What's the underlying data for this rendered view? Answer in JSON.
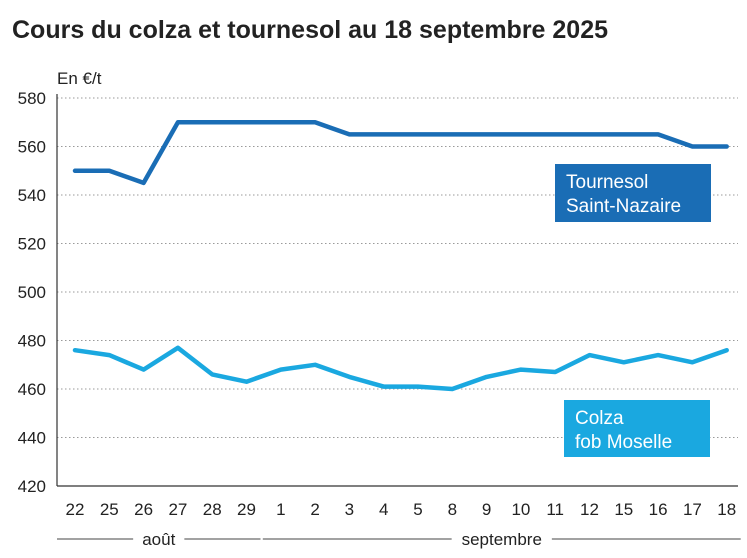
{
  "title": "Cours du colza et tournesol au 18 septembre 2025",
  "chart_data": {
    "type": "line",
    "title": "Cours du colza et tournesol au 18 septembre 2025",
    "ylabel": "En €/t",
    "ylim": [
      420,
      580
    ],
    "yticks": [
      420,
      440,
      460,
      480,
      500,
      520,
      540,
      560,
      580
    ],
    "categories": [
      "22",
      "25",
      "26",
      "27",
      "28",
      "29",
      "1",
      "2",
      "3",
      "4",
      "5",
      "8",
      "9",
      "10",
      "11",
      "12",
      "15",
      "16",
      "17",
      "18"
    ],
    "month_groups": [
      {
        "label": "août",
        "start": 0,
        "end": 5
      },
      {
        "label": "septembre",
        "start": 6,
        "end": 19
      }
    ],
    "grid": "horizontal dotted",
    "series": [
      {
        "name": "Tournesol Saint-Nazaire",
        "label_lines": [
          "Tournesol",
          "Saint-Nazaire"
        ],
        "color": "#1a6db5",
        "values": [
          550,
          550,
          545,
          570,
          570,
          570,
          570,
          570,
          565,
          565,
          565,
          565,
          565,
          565,
          565,
          565,
          565,
          565,
          560,
          560
        ]
      },
      {
        "name": "Colza fob Moselle",
        "label_lines": [
          "Colza",
          "fob Moselle"
        ],
        "color": "#1aa8e0",
        "values": [
          476,
          474,
          468,
          477,
          466,
          463,
          468,
          470,
          465,
          461,
          461,
          460,
          465,
          468,
          467,
          474,
          471,
          474,
          471,
          476
        ]
      }
    ]
  }
}
